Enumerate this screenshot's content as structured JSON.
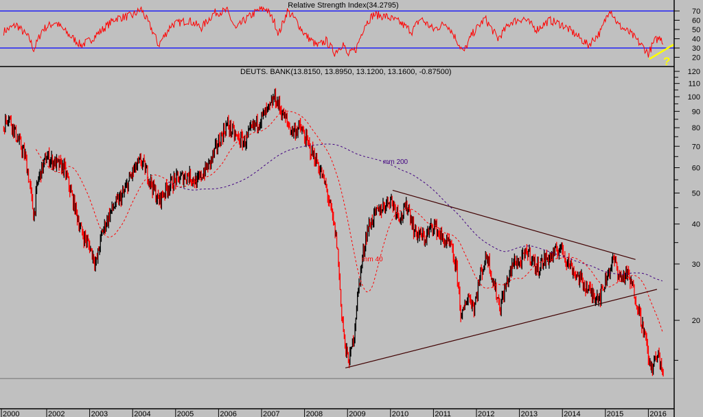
{
  "chart_data": [
    {
      "type": "line",
      "panel": "rsi",
      "title": "Relative Strength Index(34.2795)",
      "ylim": [
        13,
        80
      ],
      "yticks": [
        70,
        60,
        50,
        40,
        30,
        20
      ],
      "reference_lines": [
        70,
        30
      ],
      "series": [
        {
          "name": "RSI",
          "color": "#ff0000",
          "points": [
            [
              2001.0,
              48
            ],
            [
              2001.3,
              55
            ],
            [
              2001.6,
              40
            ],
            [
              2001.7,
              28
            ],
            [
              2001.9,
              50
            ],
            [
              2002.2,
              58
            ],
            [
              2002.5,
              45
            ],
            [
              2002.8,
              33
            ],
            [
              2003.0,
              38
            ],
            [
              2003.3,
              50
            ],
            [
              2003.6,
              62
            ],
            [
              2004.0,
              65
            ],
            [
              2004.2,
              72
            ],
            [
              2004.5,
              45
            ],
            [
              2004.6,
              33
            ],
            [
              2004.9,
              55
            ],
            [
              2005.3,
              60
            ],
            [
              2005.6,
              52
            ],
            [
              2005.9,
              68
            ],
            [
              2006.2,
              70
            ],
            [
              2006.4,
              50
            ],
            [
              2006.6,
              60
            ],
            [
              2006.9,
              70
            ],
            [
              2007.1,
              73
            ],
            [
              2007.3,
              58
            ],
            [
              2007.4,
              45
            ],
            [
              2007.6,
              70
            ],
            [
              2007.8,
              60
            ],
            [
              2008.0,
              45
            ],
            [
              2008.3,
              32
            ],
            [
              2008.5,
              38
            ],
            [
              2008.7,
              25
            ],
            [
              2008.9,
              35
            ],
            [
              2009.0,
              22
            ],
            [
              2009.2,
              29
            ],
            [
              2009.4,
              55
            ],
            [
              2009.6,
              66
            ],
            [
              2009.9,
              64
            ],
            [
              2010.2,
              58
            ],
            [
              2010.5,
              48
            ],
            [
              2010.7,
              62
            ],
            [
              2011.0,
              50
            ],
            [
              2011.3,
              57
            ],
            [
              2011.5,
              42
            ],
            [
              2011.7,
              25
            ],
            [
              2011.9,
              45
            ],
            [
              2012.2,
              62
            ],
            [
              2012.5,
              40
            ],
            [
              2012.8,
              58
            ],
            [
              2013.1,
              62
            ],
            [
              2013.4,
              50
            ],
            [
              2013.7,
              60
            ],
            [
              2014.0,
              55
            ],
            [
              2014.3,
              45
            ],
            [
              2014.6,
              33
            ],
            [
              2014.9,
              48
            ],
            [
              2015.1,
              73
            ],
            [
              2015.3,
              55
            ],
            [
              2015.6,
              45
            ],
            [
              2015.9,
              30
            ],
            [
              2016.0,
              24
            ],
            [
              2016.15,
              38
            ],
            [
              2016.3,
              42
            ],
            [
              2016.35,
              34
            ]
          ]
        }
      ],
      "annotations": [
        {
          "text": "?",
          "color": "#ffff00"
        }
      ]
    },
    {
      "type": "line",
      "panel": "price",
      "title": "DEUTS. BANK(13.8150, 13.8950, 13.1200, 13.1600, -0.87500)",
      "yscale": "log",
      "ylim": [
        11,
        125
      ],
      "yticks": [
        120,
        110,
        100,
        90,
        80,
        70,
        60,
        50,
        40,
        30,
        20
      ],
      "xticks": [
        "2000",
        "2002",
        "2003",
        "2004",
        "2005",
        "2006",
        "2007",
        "2008",
        "2009",
        "2010",
        "2011",
        "2012",
        "2013",
        "2014",
        "2015",
        "2016"
      ],
      "last_close_line": 13.16,
      "series": [
        {
          "name": "DEUTS. BANK",
          "kind": "candles",
          "up_color": "#000000",
          "down_color": "#ff0000",
          "points": [
            [
              2001.0,
              80
            ],
            [
              2001.1,
              88
            ],
            [
              2001.3,
              75
            ],
            [
              2001.5,
              65
            ],
            [
              2001.7,
              42
            ],
            [
              2001.8,
              55
            ],
            [
              2002.0,
              65
            ],
            [
              2002.2,
              62
            ],
            [
              2002.4,
              60
            ],
            [
              2002.6,
              48
            ],
            [
              2002.8,
              38
            ],
            [
              2003.0,
              34
            ],
            [
              2003.15,
              30
            ],
            [
              2003.3,
              38
            ],
            [
              2003.5,
              44
            ],
            [
              2003.8,
              50
            ],
            [
              2004.0,
              58
            ],
            [
              2004.2,
              63
            ],
            [
              2004.4,
              55
            ],
            [
              2004.6,
              47
            ],
            [
              2004.8,
              52
            ],
            [
              2005.0,
              55
            ],
            [
              2005.3,
              57
            ],
            [
              2005.5,
              54
            ],
            [
              2005.8,
              62
            ],
            [
              2006.0,
              72
            ],
            [
              2006.2,
              82
            ],
            [
              2006.4,
              75
            ],
            [
              2006.6,
              72
            ],
            [
              2006.8,
              80
            ],
            [
              2007.0,
              86
            ],
            [
              2007.2,
              92
            ],
            [
              2007.3,
              100
            ],
            [
              2007.5,
              88
            ],
            [
              2007.7,
              78
            ],
            [
              2007.9,
              80
            ],
            [
              2008.1,
              70
            ],
            [
              2008.3,
              62
            ],
            [
              2008.5,
              52
            ],
            [
              2008.6,
              45
            ],
            [
              2008.75,
              35
            ],
            [
              2008.85,
              22
            ],
            [
              2008.95,
              16
            ],
            [
              2009.05,
              15
            ],
            [
              2009.15,
              18
            ],
            [
              2009.3,
              28
            ],
            [
              2009.45,
              38
            ],
            [
              2009.6,
              42
            ],
            [
              2009.8,
              45
            ],
            [
              2010.0,
              48
            ],
            [
              2010.1,
              45
            ],
            [
              2010.25,
              42
            ],
            [
              2010.4,
              46
            ],
            [
              2010.55,
              38
            ],
            [
              2010.8,
              36
            ],
            [
              2011.0,
              40
            ],
            [
              2011.2,
              36
            ],
            [
              2011.4,
              34
            ],
            [
              2011.55,
              28
            ],
            [
              2011.65,
              20
            ],
            [
              2011.8,
              24
            ],
            [
              2011.95,
              22
            ],
            [
              2012.1,
              28
            ],
            [
              2012.25,
              32
            ],
            [
              2012.4,
              26
            ],
            [
              2012.55,
              22
            ],
            [
              2012.7,
              26
            ],
            [
              2012.9,
              31
            ],
            [
              2013.0,
              30
            ],
            [
              2013.2,
              33
            ],
            [
              2013.4,
              29
            ],
            [
              2013.6,
              31
            ],
            [
              2013.8,
              32
            ],
            [
              2013.95,
              34
            ],
            [
              2014.1,
              31
            ],
            [
              2014.3,
              28
            ],
            [
              2014.5,
              26
            ],
            [
              2014.7,
              24
            ],
            [
              2014.9,
              24
            ],
            [
              2015.05,
              28
            ],
            [
              2015.2,
              31
            ],
            [
              2015.35,
              27
            ],
            [
              2015.5,
              28
            ],
            [
              2015.65,
              25
            ],
            [
              2015.8,
              21
            ],
            [
              2015.95,
              17
            ],
            [
              2016.05,
              14
            ],
            [
              2016.15,
              15
            ],
            [
              2016.25,
              15.5
            ],
            [
              2016.35,
              13.16
            ]
          ]
        },
        {
          "name": "mm 40",
          "kind": "moving_average",
          "period_weeks": 40,
          "color": "#ff0000",
          "style": "dashed"
        },
        {
          "name": "mm 200",
          "kind": "moving_average",
          "period_weeks": 200,
          "color": "#400080",
          "style": "dashed"
        }
      ],
      "trendlines": [
        {
          "name": "upper-resistance",
          "from": [
            2010.05,
            51
          ],
          "to": [
            2015.7,
            31
          ],
          "color": "#400000"
        },
        {
          "name": "lower-support",
          "from": [
            2008.95,
            14.2
          ],
          "to": [
            2016.2,
            25
          ],
          "color": "#400000"
        }
      ],
      "labels": {
        "mm200": "mm 200",
        "mm40": "mm 40"
      }
    }
  ]
}
